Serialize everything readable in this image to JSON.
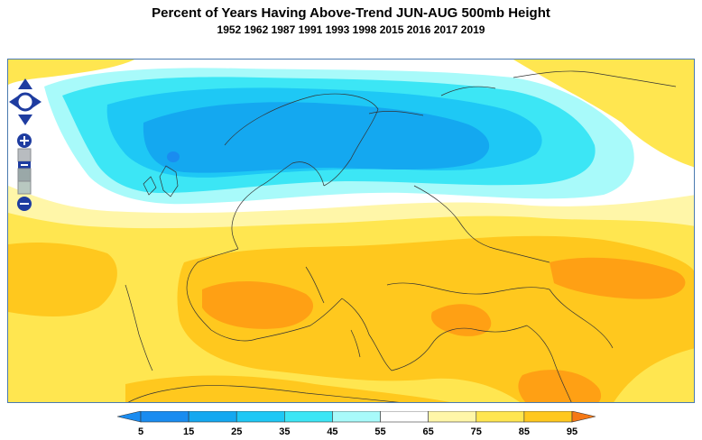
{
  "header": {
    "title": "Percent of Years Having Above-Trend JUN-AUG 500mb Height",
    "subtitle": "1952 1962 1987 1991 1993 1998 2015 2016 2017 2019"
  },
  "colors": {
    "c5": "#1a8cf0",
    "c15": "#14a8f0",
    "c25": "#1ec8f5",
    "c35": "#3ce6f5",
    "c45": "#a8fafa",
    "c55": "#ffffff",
    "c65": "#fff6a8",
    "c75": "#ffe650",
    "c85": "#ffc81e",
    "c95": "#ffa014",
    "c_over": "#f57814",
    "nav": "#1e3ca0"
  },
  "legend": {
    "ticks": [
      "5",
      "15",
      "25",
      "35",
      "45",
      "55",
      "65",
      "75",
      "85",
      "95"
    ]
  },
  "map_controls": {
    "pan": "pan-arrows-icon",
    "zoom_in": "zoom-in-icon",
    "zoom_out": "zoom-out-icon"
  }
}
